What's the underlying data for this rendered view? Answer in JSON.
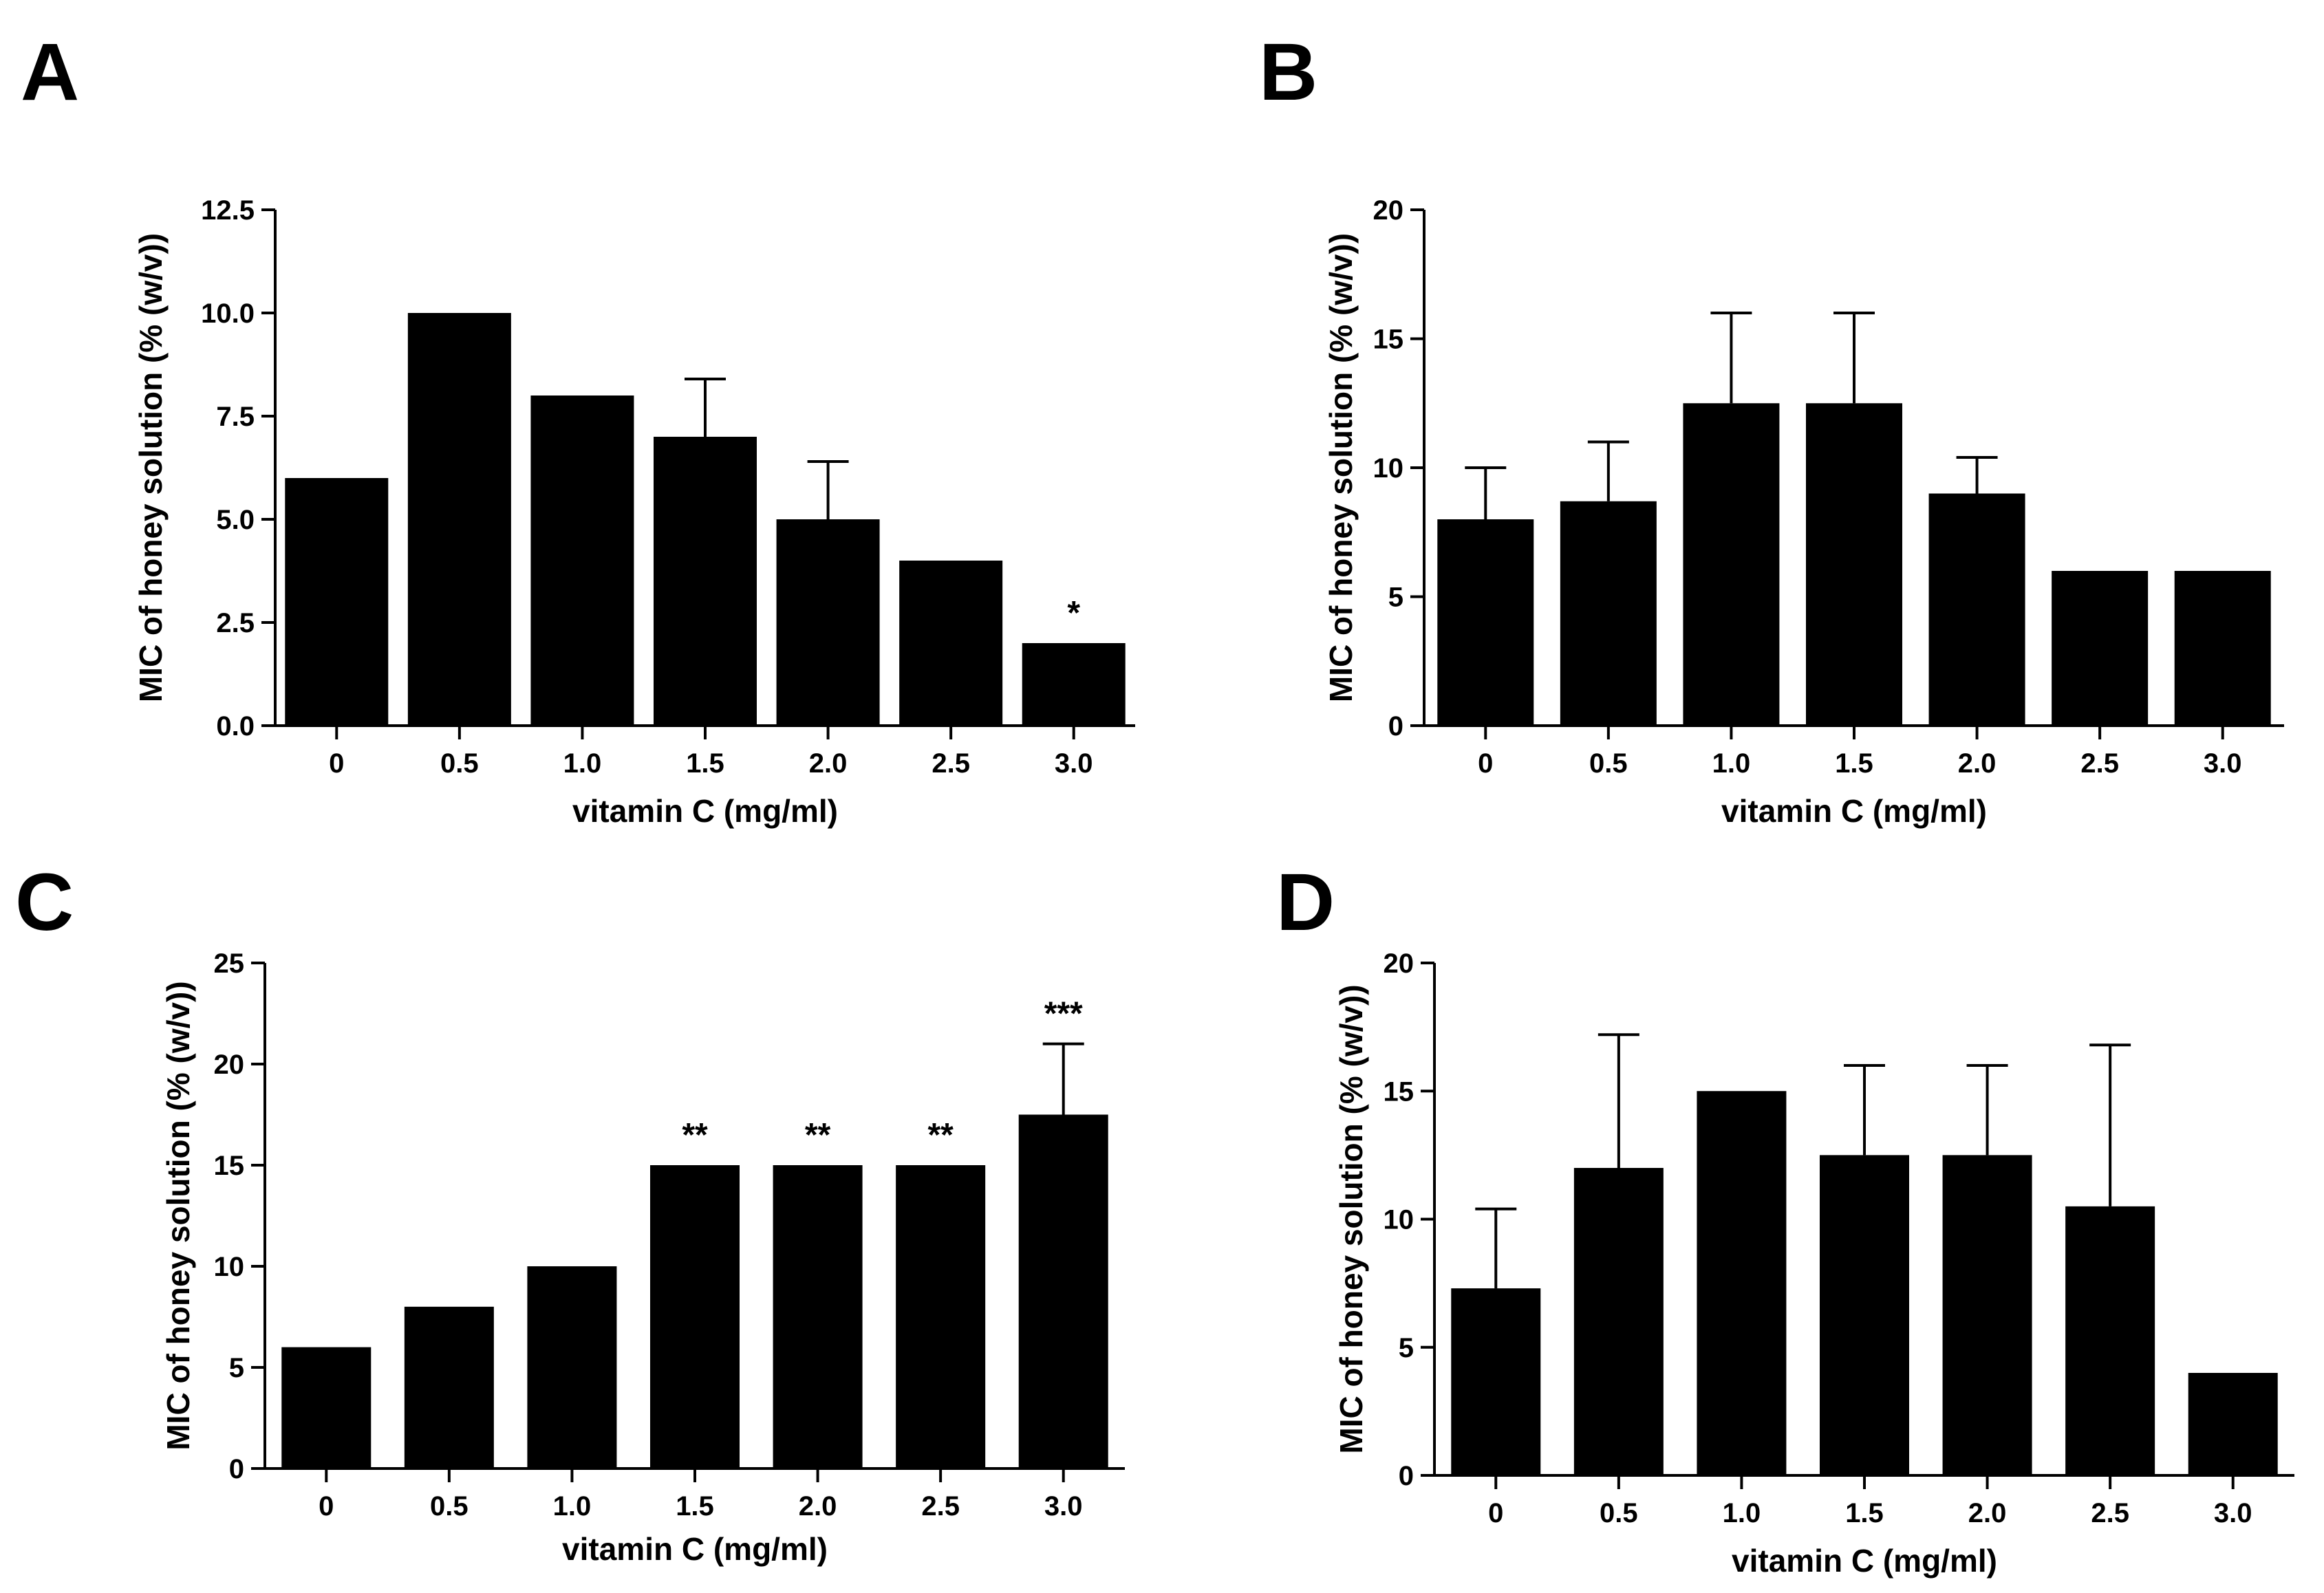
{
  "figure": {
    "panels": [
      "A",
      "B",
      "C",
      "D"
    ]
  },
  "chart_data": [
    {
      "panel": "A",
      "type": "bar",
      "categories": [
        "0",
        "0.5",
        "1.0",
        "1.5",
        "2.0",
        "2.5",
        "3.0"
      ],
      "values": [
        6,
        10,
        8,
        7,
        5,
        4,
        2
      ],
      "errors": [
        0,
        0,
        0,
        1.4,
        1.4,
        0,
        0
      ],
      "annotations": [
        "",
        "",
        "",
        "",
        "",
        "",
        "*"
      ],
      "xlabel": "vitamin C (mg/ml)",
      "ylabel": "MIC of honey solution (% (w/v))",
      "ylim": [
        0,
        12.5
      ],
      "yticks": [
        "0.0",
        "2.5",
        "5.0",
        "7.5",
        "10.0",
        "12.5"
      ],
      "ytick_values": [
        0,
        2.5,
        5,
        7.5,
        10,
        12.5
      ],
      "color": "#000000"
    },
    {
      "panel": "B",
      "type": "bar",
      "categories": [
        "0",
        "0.5",
        "1.0",
        "1.5",
        "2.0",
        "2.5",
        "3.0"
      ],
      "values": [
        8,
        8.7,
        12.5,
        12.5,
        9,
        6,
        6
      ],
      "errors": [
        2,
        2.3,
        3.5,
        3.5,
        1.4,
        0,
        0
      ],
      "annotations": [
        "",
        "",
        "",
        "",
        "",
        "",
        ""
      ],
      "xlabel": "vitamin C (mg/ml)",
      "ylabel": "MIC of honey solution (% (w/v))",
      "ylim": [
        0,
        20
      ],
      "yticks": [
        "0",
        "5",
        "10",
        "15",
        "20"
      ],
      "ytick_values": [
        0,
        5,
        10,
        15,
        20
      ],
      "color": "#000000"
    },
    {
      "panel": "C",
      "type": "bar",
      "categories": [
        "0",
        "0.5",
        "1.0",
        "1.5",
        "2.0",
        "2.5",
        "3.0"
      ],
      "values": [
        6,
        8,
        10,
        15,
        15,
        15,
        17.5
      ],
      "errors": [
        0,
        0,
        0,
        0,
        0,
        0,
        3.5
      ],
      "annotations": [
        "",
        "",
        "",
        "**",
        "**",
        "**",
        "***"
      ],
      "xlabel": "vitamin C (mg/ml)",
      "ylabel": "MIC of honey solution (% (w/v))",
      "ylim": [
        0,
        25
      ],
      "yticks": [
        "0",
        "5",
        "10",
        "15",
        "20",
        "25"
      ],
      "ytick_values": [
        0,
        5,
        10,
        15,
        20,
        25
      ],
      "color": "#000000"
    },
    {
      "panel": "D",
      "type": "bar",
      "categories": [
        "0",
        "0.5",
        "1.0",
        "1.5",
        "2.0",
        "2.5",
        "3.0"
      ],
      "values": [
        7.3,
        12,
        15,
        12.5,
        12.5,
        10.5,
        4
      ],
      "errors": [
        3.1,
        5.2,
        0,
        3.5,
        3.5,
        6.3,
        0
      ],
      "annotations": [
        "",
        "",
        "",
        "",
        "",
        "",
        ""
      ],
      "xlabel": "vitamin C (mg/ml)",
      "ylabel": "MIC of honey solution (% (w/v))",
      "ylim": [
        0,
        20
      ],
      "yticks": [
        "0",
        "5",
        "10",
        "15",
        "20"
      ],
      "ytick_values": [
        0,
        5,
        10,
        15,
        20
      ],
      "color": "#000000"
    }
  ]
}
